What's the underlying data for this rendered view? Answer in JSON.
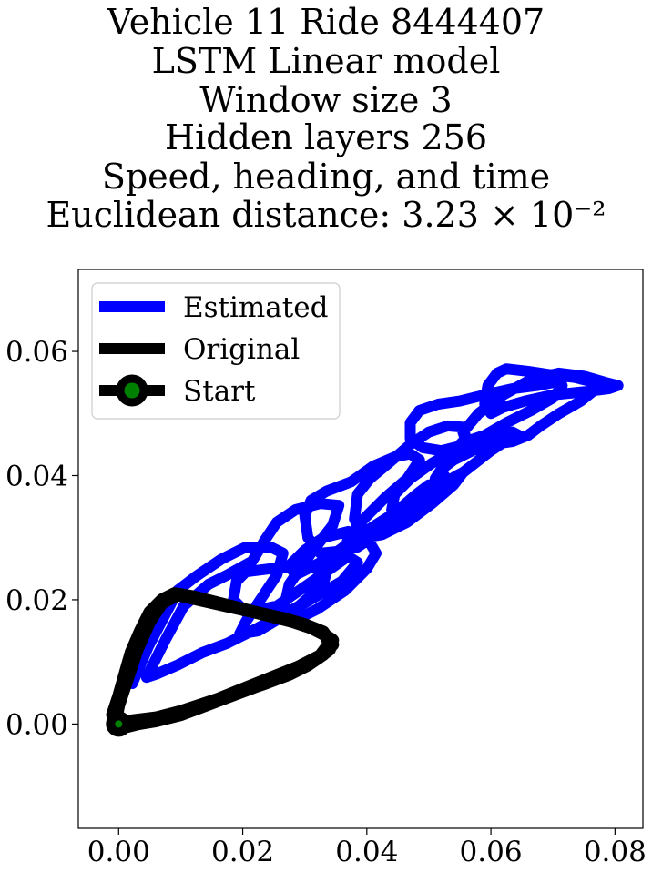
{
  "chart_data": {
    "type": "line",
    "title_lines": [
      "Vehicle 11 Ride 8444407",
      "LSTM Linear model",
      "Window size 3",
      "Hidden layers 256",
      "Speed, heading, and time",
      "Euclidean distance: 3.23 × 10⁻²"
    ],
    "xlabel": "",
    "ylabel": "",
    "xlim": [
      -0.0065,
      0.0845
    ],
    "ylim": [
      -0.0168,
      0.0732
    ],
    "xticks": [
      0.0,
      0.02,
      0.04,
      0.06,
      0.08
    ],
    "yticks": [
      0.0,
      0.02,
      0.04,
      0.06
    ],
    "xtick_labels": [
      "0.00",
      "0.02",
      "0.04",
      "0.06",
      "0.08"
    ],
    "ytick_labels": [
      "0.00",
      "0.02",
      "0.04",
      "0.06"
    ],
    "legend_position": "top-left",
    "series": [
      {
        "name": "Estimated",
        "color": "#0000ff",
        "points": [
          [
            0.0022,
            0.0065
          ],
          [
            0.0048,
            0.0125
          ],
          [
            0.0085,
            0.0195
          ],
          [
            0.0095,
            0.0215
          ],
          [
            0.0125,
            0.0238
          ],
          [
            0.0165,
            0.0265
          ],
          [
            0.0205,
            0.0285
          ],
          [
            0.0245,
            0.0285
          ],
          [
            0.0265,
            0.0275
          ],
          [
            0.0255,
            0.024
          ],
          [
            0.0205,
            0.0165
          ],
          [
            0.0195,
            0.0145
          ],
          [
            0.0225,
            0.015
          ],
          [
            0.0285,
            0.0185
          ],
          [
            0.033,
            0.0225
          ],
          [
            0.0335,
            0.0245
          ],
          [
            0.03,
            0.0255
          ],
          [
            0.0245,
            0.025
          ],
          [
            0.0205,
            0.0245
          ],
          [
            0.019,
            0.023
          ],
          [
            0.0185,
            0.02
          ],
          [
            0.0205,
            0.018
          ],
          [
            0.0255,
            0.019
          ],
          [
            0.032,
            0.0235
          ],
          [
            0.037,
            0.027
          ],
          [
            0.0385,
            0.026
          ],
          [
            0.036,
            0.023
          ],
          [
            0.03,
            0.0195
          ],
          [
            0.0225,
            0.0155
          ],
          [
            0.0175,
            0.013
          ],
          [
            0.0135,
            0.0115
          ],
          [
            0.0095,
            0.0095
          ],
          [
            0.006,
            0.008
          ],
          [
            0.0045,
            0.0075
          ],
          [
            0.0045,
            0.0075
          ],
          [
            0.0075,
            0.0135
          ],
          [
            0.0105,
            0.019
          ],
          [
            0.0145,
            0.0225
          ],
          [
            0.0175,
            0.024
          ],
          [
            0.0215,
            0.0262
          ],
          [
            0.0235,
            0.0295
          ],
          [
            0.0255,
            0.0325
          ],
          [
            0.0285,
            0.0345
          ],
          [
            0.0325,
            0.0355
          ],
          [
            0.0355,
            0.0352
          ],
          [
            0.0345,
            0.032
          ],
          [
            0.031,
            0.0275
          ],
          [
            0.0275,
            0.0225
          ],
          [
            0.0265,
            0.018
          ],
          [
            0.028,
            0.0165
          ],
          [
            0.032,
            0.0185
          ],
          [
            0.0365,
            0.0215
          ],
          [
            0.04,
            0.025
          ],
          [
            0.0415,
            0.0275
          ],
          [
            0.04,
            0.03
          ],
          [
            0.037,
            0.031
          ],
          [
            0.033,
            0.03
          ],
          [
            0.03,
            0.028
          ],
          [
            0.0275,
            0.0255
          ],
          [
            0.0285,
            0.024
          ],
          [
            0.0335,
            0.0265
          ],
          [
            0.039,
            0.0305
          ],
          [
            0.0445,
            0.034
          ],
          [
            0.048,
            0.037
          ],
          [
            0.05,
            0.0385
          ],
          [
            0.05,
            0.0385
          ],
          [
            0.048,
            0.036
          ],
          [
            0.0445,
            0.0335
          ],
          [
            0.04,
            0.0305
          ],
          [
            0.0355,
            0.0278
          ],
          [
            0.0325,
            0.0275
          ],
          [
            0.0305,
            0.03
          ],
          [
            0.03,
            0.0335
          ],
          [
            0.031,
            0.036
          ],
          [
            0.0335,
            0.0375
          ],
          [
            0.0375,
            0.039
          ],
          [
            0.041,
            0.0415
          ],
          [
            0.0445,
            0.043
          ],
          [
            0.047,
            0.0435
          ],
          [
            0.0485,
            0.0425
          ],
          [
            0.0465,
            0.0395
          ],
          [
            0.043,
            0.0365
          ],
          [
            0.0395,
            0.033
          ],
          [
            0.037,
            0.03
          ],
          [
            0.0365,
            0.028
          ],
          [
            0.0385,
            0.0285
          ],
          [
            0.043,
            0.0315
          ],
          [
            0.048,
            0.035
          ],
          [
            0.052,
            0.0385
          ],
          [
            0.0545,
            0.04
          ],
          [
            0.0555,
            0.0405
          ],
          [
            0.0555,
            0.0405
          ],
          [
            0.054,
            0.0385
          ],
          [
            0.0505,
            0.0355
          ],
          [
            0.0465,
            0.0325
          ],
          [
            0.0425,
            0.0305
          ],
          [
            0.0395,
            0.03
          ],
          [
            0.038,
            0.033
          ],
          [
            0.0385,
            0.037
          ],
          [
            0.0405,
            0.0395
          ],
          [
            0.0435,
            0.042
          ],
          [
            0.047,
            0.045
          ],
          [
            0.05,
            0.047
          ],
          [
            0.053,
            0.048
          ],
          [
            0.0555,
            0.0478
          ],
          [
            0.056,
            0.046
          ],
          [
            0.054,
            0.044
          ],
          [
            0.0505,
            0.042
          ],
          [
            0.047,
            0.0395
          ],
          [
            0.0445,
            0.037
          ],
          [
            0.044,
            0.0345
          ],
          [
            0.046,
            0.0345
          ],
          [
            0.0505,
            0.037
          ],
          [
            0.0555,
            0.0405
          ],
          [
            0.06,
            0.044
          ],
          [
            0.063,
            0.046
          ],
          [
            0.0645,
            0.0465
          ],
          [
            0.0635,
            0.047
          ],
          [
            0.0635,
            0.047
          ],
          [
            0.06,
            0.046
          ],
          [
            0.056,
            0.045
          ],
          [
            0.052,
            0.044
          ],
          [
            0.049,
            0.0445
          ],
          [
            0.047,
            0.046
          ],
          [
            0.047,
            0.0485
          ],
          [
            0.0485,
            0.0505
          ],
          [
            0.0515,
            0.0515
          ],
          [
            0.055,
            0.052
          ],
          [
            0.059,
            0.053
          ],
          [
            0.0635,
            0.054
          ],
          [
            0.0675,
            0.0545
          ],
          [
            0.07,
            0.055
          ],
          [
            0.0715,
            0.0545
          ],
          [
            0.07,
            0.0525
          ],
          [
            0.0665,
            0.0505
          ],
          [
            0.0625,
            0.0485
          ],
          [
            0.059,
            0.0465
          ],
          [
            0.056,
            0.0455
          ],
          [
            0.0555,
            0.047
          ],
          [
            0.058,
            0.05
          ],
          [
            0.062,
            0.053
          ],
          [
            0.0665,
            0.0555
          ],
          [
            0.071,
            0.0565
          ],
          [
            0.075,
            0.056
          ],
          [
            0.0785,
            0.055
          ],
          [
            0.0805,
            0.0545
          ],
          [
            0.079,
            0.054
          ],
          [
            0.075,
            0.0535
          ],
          [
            0.07,
            0.053
          ],
          [
            0.0655,
            0.052
          ],
          [
            0.062,
            0.051
          ],
          [
            0.06,
            0.05
          ],
          [
            0.059,
            0.0515
          ],
          [
            0.0595,
            0.0545
          ],
          [
            0.061,
            0.0565
          ],
          [
            0.0625,
            0.0572
          ],
          [
            0.066,
            0.0568
          ],
          [
            0.07,
            0.0562
          ],
          [
            0.0735,
            0.0558
          ],
          [
            0.076,
            0.0552
          ],
          [
            0.077,
            0.054
          ],
          [
            0.0745,
            0.052
          ],
          [
            0.071,
            0.05
          ],
          [
            0.068,
            0.048
          ],
          [
            0.066,
            0.0465
          ],
          [
            0.0635,
            0.0455
          ],
          [
            0.06,
            0.045
          ],
          [
            0.057,
            0.044
          ],
          [
            0.054,
            0.0425
          ],
          [
            0.052,
            0.041
          ],
          [
            0.051,
            0.0395
          ],
          [
            0.0515,
            0.0395
          ],
          [
            0.0525,
            0.04
          ]
        ]
      },
      {
        "name": "Original",
        "color": "#000000",
        "points": [
          [
            0.0,
            0.0
          ],
          [
            -0.001,
            0.0015
          ],
          [
            0.0,
            0.0045
          ],
          [
            0.001,
            0.008
          ],
          [
            0.002,
            0.0115
          ],
          [
            0.0035,
            0.015
          ],
          [
            0.005,
            0.018
          ],
          [
            0.007,
            0.02
          ],
          [
            0.009,
            0.021
          ],
          [
            0.012,
            0.0205
          ],
          [
            0.016,
            0.0195
          ],
          [
            0.02,
            0.0185
          ],
          [
            0.024,
            0.0175
          ],
          [
            0.028,
            0.0165
          ],
          [
            0.031,
            0.0155
          ],
          [
            0.033,
            0.0145
          ],
          [
            0.0345,
            0.0135
          ],
          [
            0.034,
            0.012
          ],
          [
            0.032,
            0.0105
          ],
          [
            0.0295,
            0.009
          ],
          [
            0.026,
            0.0075
          ],
          [
            0.022,
            0.006
          ],
          [
            0.018,
            0.0045
          ],
          [
            0.014,
            0.003
          ],
          [
            0.01,
            0.0015
          ],
          [
            0.006,
            0.0005
          ],
          [
            0.003,
            0.0
          ],
          [
            0.001,
            -0.0005
          ],
          [
            -0.0005,
            0.0005
          ],
          [
            0.0,
            0.003
          ],
          [
            0.0015,
            0.0075
          ],
          [
            0.003,
            0.012
          ],
          [
            0.005,
            0.0165
          ],
          [
            0.007,
            0.0195
          ],
          [
            0.0095,
            0.0208
          ],
          [
            0.013,
            0.02
          ],
          [
            0.0175,
            0.019
          ],
          [
            0.022,
            0.018
          ],
          [
            0.0265,
            0.017
          ],
          [
            0.03,
            0.016
          ],
          [
            0.033,
            0.0148
          ],
          [
            0.034,
            0.013
          ],
          [
            0.0325,
            0.011
          ],
          [
            0.029,
            0.0092
          ],
          [
            0.025,
            0.0076
          ],
          [
            0.0205,
            0.0058
          ],
          [
            0.016,
            0.004
          ],
          [
            0.0115,
            0.0022
          ],
          [
            0.007,
            0.0008
          ],
          [
            0.003,
            0.0
          ],
          [
            0.0,
            0.0
          ],
          [
            0.002,
            0.0005
          ],
          [
            0.006,
            0.001
          ],
          [
            0.01,
            0.002
          ],
          [
            0.0145,
            0.0035
          ],
          [
            0.019,
            0.005
          ],
          [
            0.0235,
            0.0065
          ],
          [
            0.0275,
            0.008
          ],
          [
            0.0305,
            0.0095
          ],
          [
            0.033,
            0.0112
          ],
          [
            0.0345,
            0.0128
          ]
        ]
      },
      {
        "name": "Start",
        "color": "#000000",
        "marker_color": "#008000",
        "points": [
          [
            0.0,
            0.0
          ]
        ]
      }
    ]
  }
}
